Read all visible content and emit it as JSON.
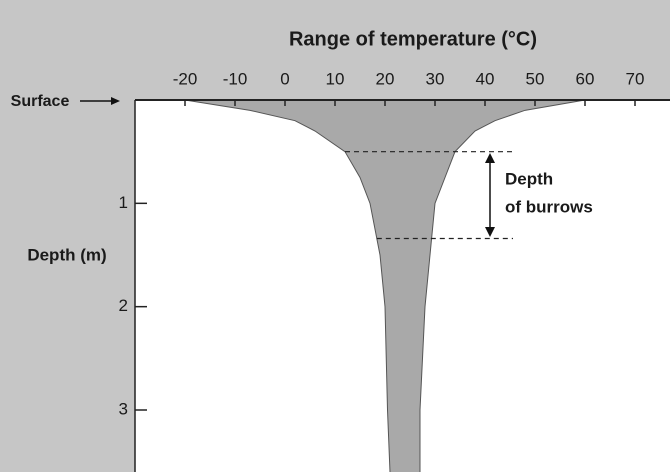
{
  "chart_data": {
    "type": "range-area",
    "title": "Range of temperature (°C)",
    "y_label": "Depth (m)",
    "surface_label": "Surface",
    "annotation": [
      "Depth",
      "of burrows"
    ],
    "depth": [
      0,
      0.1,
      0.2,
      0.3,
      0.5,
      0.75,
      1,
      1.5,
      2,
      3,
      3.6
    ],
    "min_temp": [
      -20,
      -7,
      2,
      6,
      12,
      15,
      17,
      19,
      20,
      20.5,
      21
    ],
    "max_temp": [
      60,
      48,
      42,
      38,
      34,
      32,
      30,
      29,
      28,
      27,
      27
    ],
    "burrow_depth": [
      0.5,
      1.34
    ],
    "color": "#a9a9a9",
    "xlim": [
      -30,
      77
    ],
    "xticks": [
      -20,
      -10,
      0,
      10,
      20,
      30,
      40,
      50,
      60,
      70
    ],
    "ylim": [
      0,
      3.6
    ],
    "yticks": [
      1,
      2,
      3
    ],
    "y_inverted": true
  }
}
